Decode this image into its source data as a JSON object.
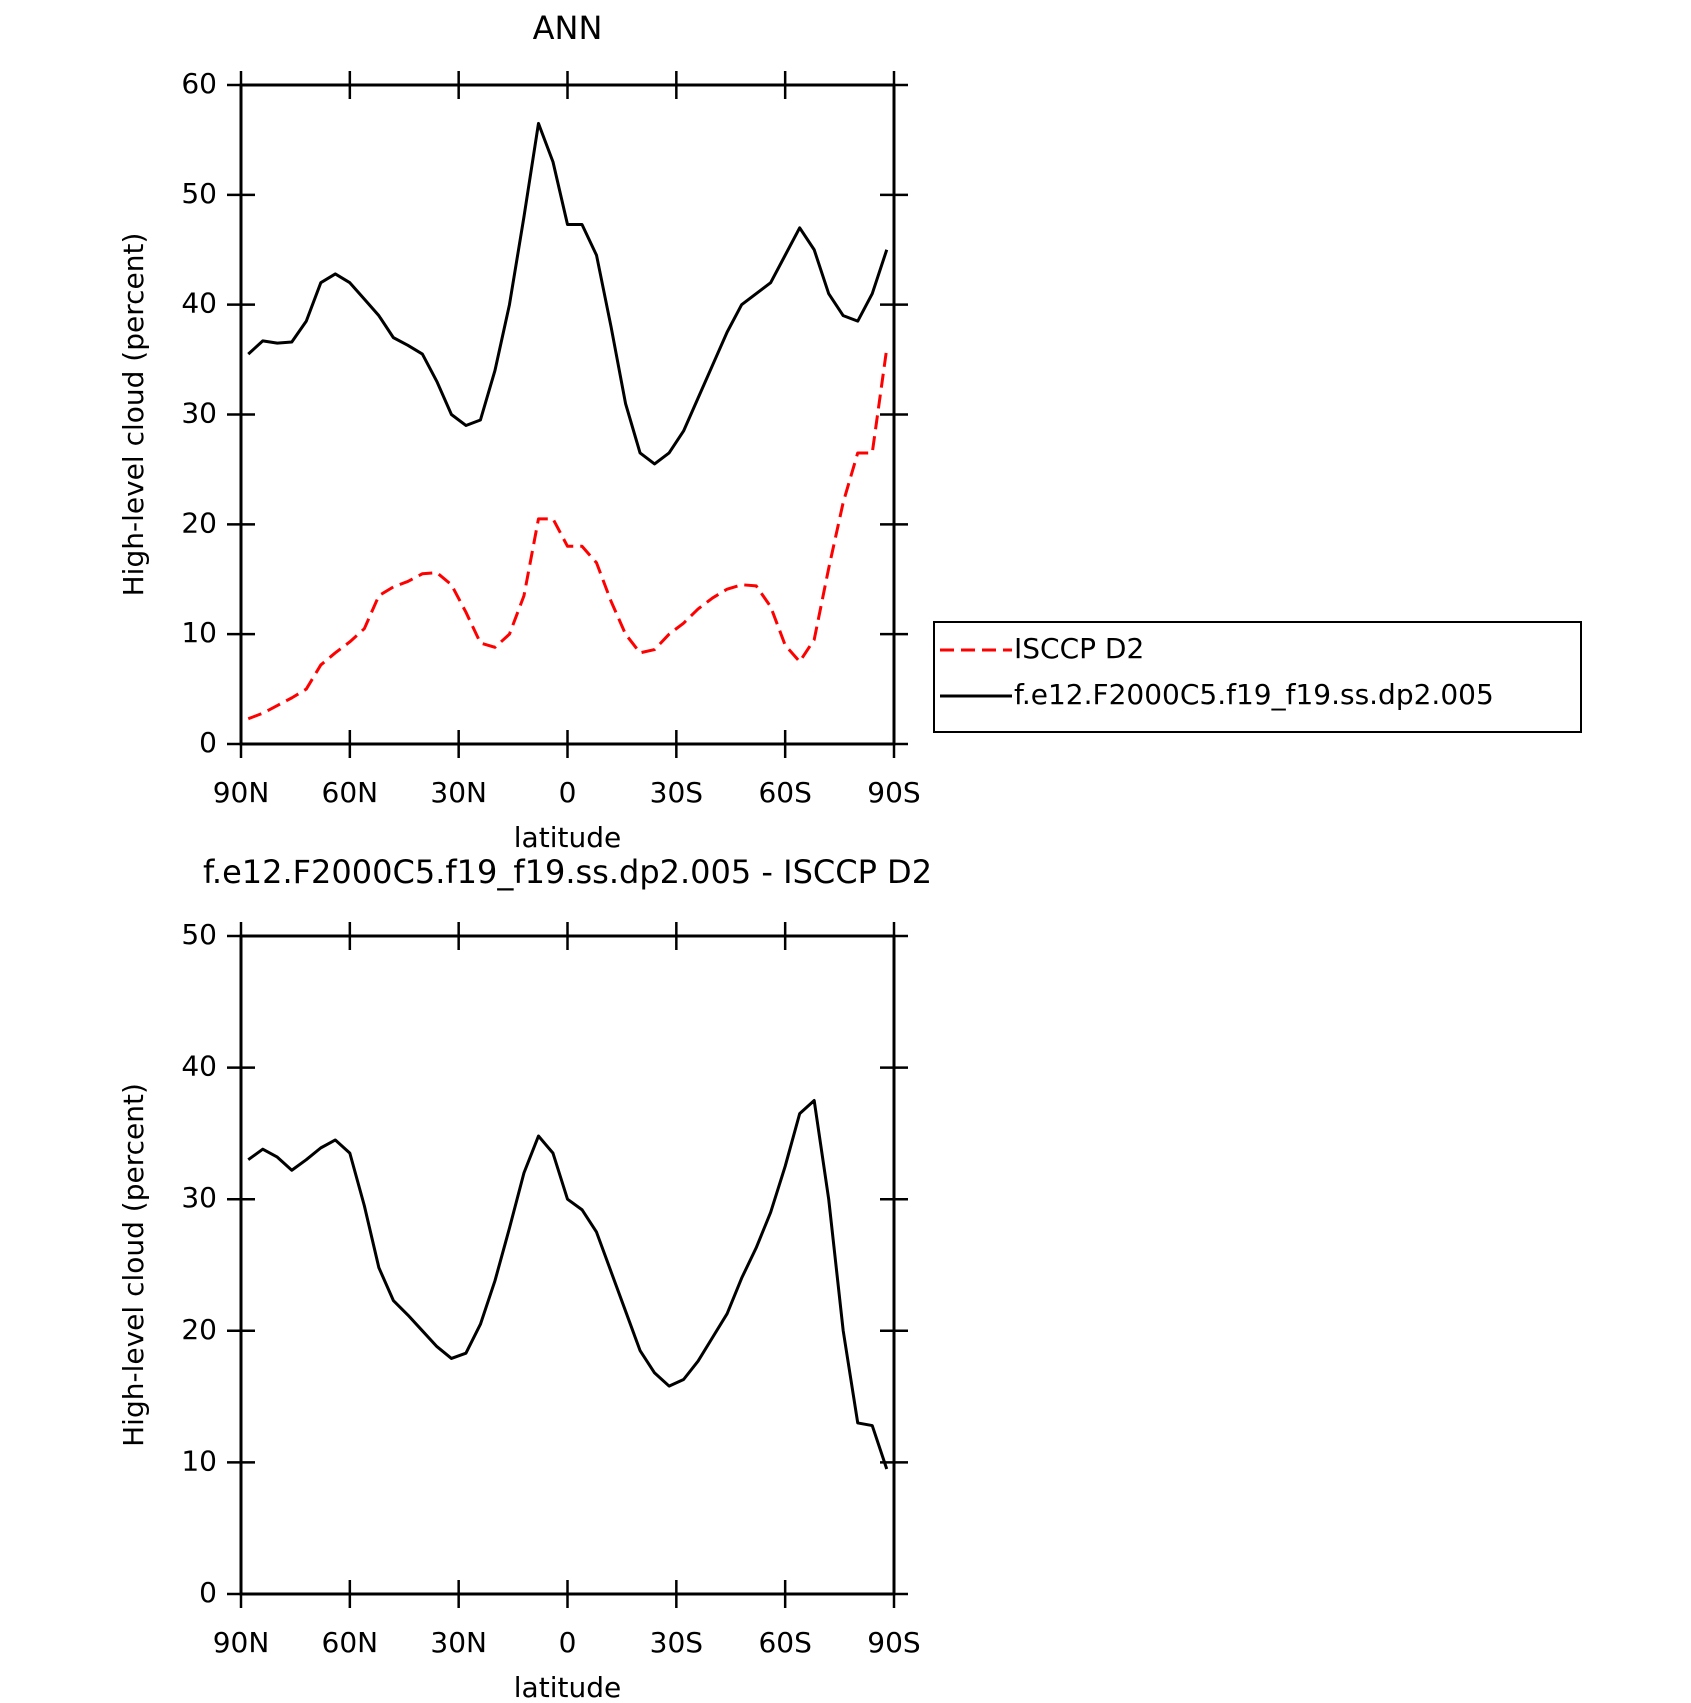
{
  "chart_data": [
    {
      "type": "line",
      "title": "ANN",
      "x_label": "latitude",
      "y_label": "High-level cloud (percent)",
      "x": [
        88,
        84,
        80,
        76,
        72,
        68,
        64,
        60,
        56,
        52,
        48,
        44,
        40,
        36,
        32,
        28,
        24,
        20,
        16,
        12,
        8,
        4,
        0,
        -4,
        -8,
        -12,
        -16,
        -20,
        -24,
        -28,
        -32,
        -36,
        -40,
        -44,
        -48,
        -52,
        -56,
        -60,
        -64,
        -68,
        -72,
        -76,
        -80,
        -84,
        -88
      ],
      "series": [
        {
          "name": "ISCCP D2",
          "color": "#ff0000",
          "dashed": true,
          "values": [
            2.3,
            2.8,
            3.5,
            4.2,
            5,
            7.2,
            8.3,
            9.3,
            10.5,
            13.5,
            14.3,
            14.8,
            15.5,
            15.6,
            14.5,
            12,
            9.2,
            8.8,
            10,
            13.5,
            20.5,
            20.5,
            18,
            18,
            16.5,
            13,
            10,
            8.3,
            8.6,
            10,
            11,
            12.3,
            13.3,
            14.1,
            14.5,
            14.4,
            12.5,
            9,
            7.5,
            9.5,
            16,
            22,
            26.5,
            26.5,
            36
          ]
        },
        {
          "name": "f.e12.F2000C5.f19_f19.ss.dp2.005",
          "color": "#000000",
          "dashed": false,
          "values": [
            35.5,
            36.7,
            36.5,
            36.6,
            38.5,
            42,
            42.8,
            42,
            40.5,
            39,
            37,
            36.3,
            35.5,
            33,
            30,
            29,
            29.5,
            34,
            40,
            48,
            56.5,
            53,
            47.3,
            47.3,
            44.5,
            38,
            31,
            26.5,
            25.5,
            26.5,
            28.5,
            31.5,
            34.5,
            37.5,
            40,
            41,
            42,
            44.5,
            47,
            45,
            41,
            39,
            38.5,
            41,
            45
          ]
        }
      ],
      "xlim": [
        90,
        -90
      ],
      "xticks": [
        {
          "value": 90,
          "label": "90N"
        },
        {
          "value": 60,
          "label": "60N"
        },
        {
          "value": 30,
          "label": "30N"
        },
        0,
        {
          "value": -30,
          "label": "30S"
        },
        {
          "value": -60,
          "label": "60S"
        },
        {
          "value": -90,
          "label": "90S"
        }
      ],
      "ylim": [
        0,
        60
      ],
      "yticks": [
        0,
        10,
        20,
        30,
        40,
        50,
        60
      ],
      "legend": "right"
    },
    {
      "type": "line",
      "title": "f.e12.F2000C5.f19_f19.ss.dp2.005 - ISCCP D2",
      "x_label": "latitude",
      "y_label": "High-level cloud (percent)",
      "x": [
        88,
        84,
        80,
        76,
        72,
        68,
        64,
        60,
        56,
        52,
        48,
        44,
        40,
        36,
        32,
        28,
        24,
        20,
        16,
        12,
        8,
        4,
        0,
        -4,
        -8,
        -12,
        -16,
        -20,
        -24,
        -28,
        -32,
        -36,
        -40,
        -44,
        -48,
        -52,
        -56,
        -60,
        -64,
        -68,
        -72,
        -76,
        -80,
        -84,
        -88
      ],
      "series": [
        {
          "color": "#000000",
          "dashed": false,
          "values": [
            33,
            33.8,
            33.2,
            32.2,
            33,
            33.9,
            34.5,
            33.5,
            29.5,
            24.8,
            22.3,
            21.2,
            20,
            18.8,
            17.9,
            18.3,
            20.5,
            23.8,
            27.8,
            32,
            34.8,
            33.5,
            30,
            29.2,
            27.5,
            24.5,
            21.5,
            18.5,
            16.8,
            15.8,
            16.3,
            17.7,
            19.5,
            21.3,
            24,
            26.3,
            29,
            32.5,
            36.5,
            37.5,
            30,
            20,
            13,
            12.8,
            9.5
          ]
        }
      ],
      "xlim": [
        90,
        -90
      ],
      "xticks": [
        {
          "value": 90,
          "label": "90N"
        },
        {
          "value": 60,
          "label": "60N"
        },
        {
          "value": 30,
          "label": "30N"
        },
        0,
        {
          "value": -30,
          "label": "30S"
        },
        {
          "value": -60,
          "label": "60S"
        },
        {
          "value": -90,
          "label": "90S"
        }
      ],
      "ylim": [
        0,
        50
      ],
      "yticks": [
        0,
        10,
        20,
        30,
        40,
        50
      ]
    }
  ]
}
